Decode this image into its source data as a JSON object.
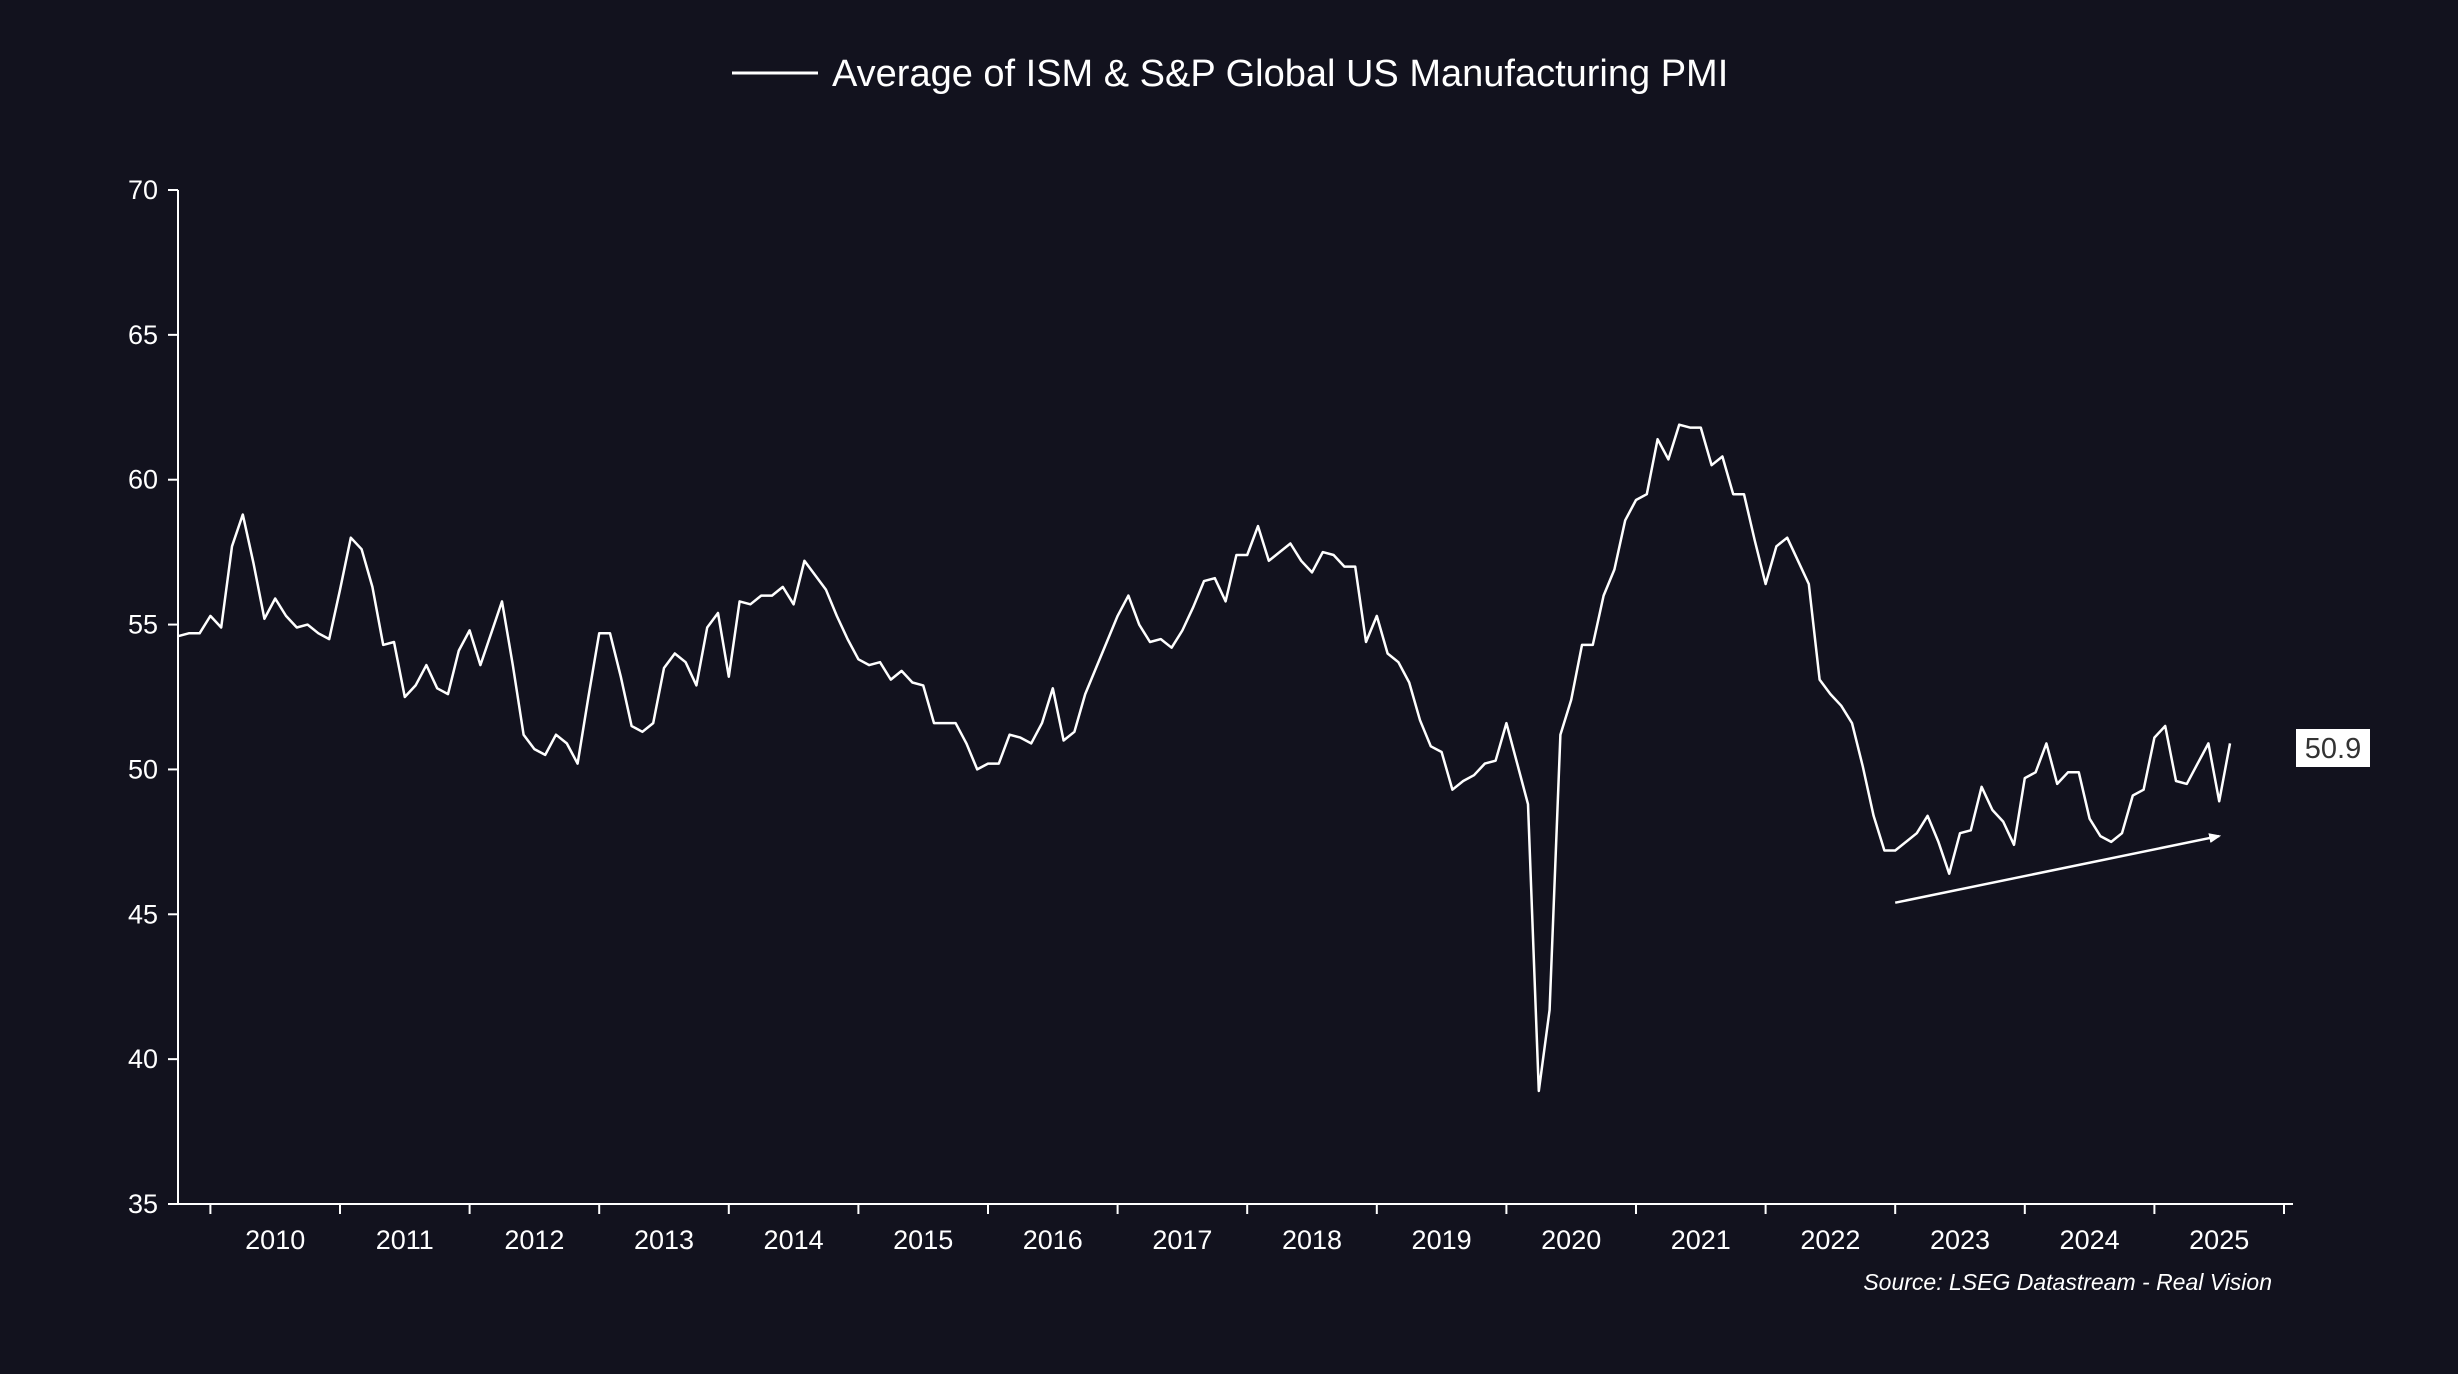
{
  "colors": {
    "background": "#12121e",
    "line": "#ffffff",
    "axis": "#ffffff",
    "label_box": "#ffffff",
    "label_text": "#333333"
  },
  "chart_data": {
    "type": "line",
    "title": "",
    "legend": {
      "label": "Average of ISM & S&P Global US Manufacturing PMI",
      "placement": "top-center"
    },
    "xlabel": "",
    "ylabel": "",
    "ylim": [
      35,
      70
    ],
    "y_ticks": [
      "35",
      "40",
      "45",
      "50",
      "55",
      "60",
      "65",
      "70"
    ],
    "x_ticks": [
      "2010",
      "2011",
      "2012",
      "2013",
      "2014",
      "2015",
      "2016",
      "2017",
      "2018",
      "2019",
      "2020",
      "2021",
      "2022",
      "2023",
      "2024",
      "2025"
    ],
    "x_start": "2009-10",
    "frequency": "monthly",
    "series": [
      {
        "name": "Average of ISM & S&P Global US Manufacturing PMI",
        "values": [
          54.6,
          54.7,
          54.7,
          55.3,
          54.9,
          57.7,
          58.8,
          57.1,
          55.2,
          55.9,
          55.3,
          54.9,
          55.0,
          54.7,
          54.5,
          56.2,
          58.0,
          57.6,
          56.3,
          54.3,
          54.4,
          52.5,
          52.9,
          53.6,
          52.8,
          52.6,
          54.1,
          54.8,
          53.6,
          54.7,
          55.8,
          53.6,
          51.2,
          50.7,
          50.5,
          51.2,
          50.9,
          50.2,
          52.5,
          54.7,
          54.7,
          53.2,
          51.5,
          51.3,
          51.6,
          53.5,
          54.0,
          53.7,
          52.9,
          54.9,
          55.4,
          53.2,
          55.8,
          55.7,
          56.0,
          56.0,
          56.3,
          55.7,
          57.2,
          56.7,
          56.2,
          55.3,
          54.5,
          53.8,
          53.6,
          53.7,
          53.1,
          53.4,
          53.0,
          52.9,
          51.6,
          51.6,
          51.6,
          50.9,
          50.0,
          50.2,
          50.2,
          51.2,
          51.1,
          50.9,
          51.6,
          52.8,
          51.0,
          51.3,
          52.6,
          53.5,
          54.4,
          55.3,
          56.0,
          55.0,
          54.4,
          54.5,
          54.2,
          54.8,
          55.6,
          56.5,
          56.6,
          55.8,
          57.4,
          57.4,
          58.4,
          57.2,
          57.5,
          57.8,
          57.2,
          56.8,
          57.5,
          57.4,
          57.0,
          57.0,
          54.4,
          55.3,
          54.0,
          53.7,
          53.0,
          51.7,
          50.8,
          50.6,
          49.3,
          49.6,
          49.8,
          50.2,
          50.3,
          51.6,
          50.2,
          48.8,
          38.9,
          41.7,
          51.2,
          52.4,
          54.3,
          54.3,
          56.0,
          56.9,
          58.6,
          59.3,
          59.5,
          61.4,
          60.7,
          61.9,
          61.8,
          61.8,
          60.5,
          60.8,
          59.5,
          59.5,
          57.9,
          56.4,
          57.7,
          58.0,
          57.2,
          56.4,
          53.1,
          52.6,
          52.2,
          51.6,
          50.1,
          48.4,
          47.2,
          47.2,
          47.5,
          47.8,
          48.4,
          47.5,
          46.4,
          47.8,
          47.9,
          49.4,
          48.6,
          48.2,
          47.4,
          49.7,
          49.9,
          50.9,
          49.5,
          49.9,
          49.9,
          48.3,
          47.7,
          47.5,
          47.8,
          49.1,
          49.3,
          51.1,
          51.5,
          49.6,
          49.5,
          50.2,
          50.9,
          48.9,
          50.9
        ]
      }
    ],
    "last_value_label": "50.9",
    "annotation": {
      "type": "arrow",
      "meaning": "rising trend of lows",
      "from_date": "2023-01",
      "from_value": 45.4,
      "to_date": "2025-07",
      "to_value": 47.7
    },
    "grid": false
  },
  "source": "Source: LSEG Datastream - Real Vision"
}
